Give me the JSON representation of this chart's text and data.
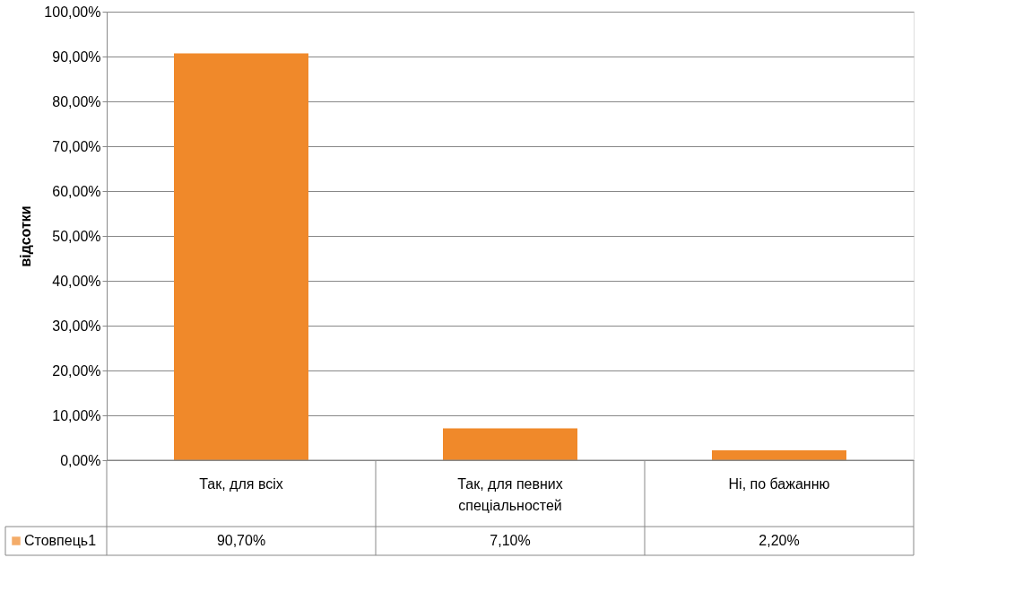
{
  "chart_data": {
    "type": "bar",
    "ylabel": "відсотки",
    "categories": [
      "Так, для всіх",
      "Так, для певних спеціальностей",
      "Ні, по бажанню"
    ],
    "series": [
      {
        "name": "Стовпець1",
        "color": "#f0892a",
        "values": [
          90.7,
          7.1,
          2.2
        ],
        "value_labels": [
          "90,70%",
          "7,10%",
          "2,20%"
        ]
      }
    ],
    "ylim": [
      0,
      100
    ],
    "yticks": [
      {
        "value": 0,
        "label": "0,00%"
      },
      {
        "value": 10,
        "label": "10,00%"
      },
      {
        "value": 20,
        "label": "20,00%"
      },
      {
        "value": 30,
        "label": "30,00%"
      },
      {
        "value": 40,
        "label": "40,00%"
      },
      {
        "value": 50,
        "label": "50,00%"
      },
      {
        "value": 60,
        "label": "60,00%"
      },
      {
        "value": 70,
        "label": "70,00%"
      },
      {
        "value": 80,
        "label": "80,00%"
      },
      {
        "value": 90,
        "label": "90,00%"
      },
      {
        "value": 100,
        "label": "100,00%"
      }
    ],
    "grid": "y",
    "legend": "bottom"
  }
}
